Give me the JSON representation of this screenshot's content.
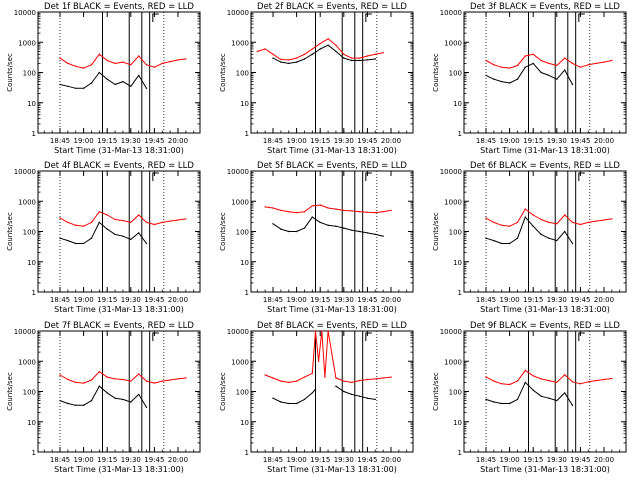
{
  "page": {
    "xlabel": "Start Time (31-Mar-13 18:31:00)",
    "ylabel": "Counts/sec"
  },
  "colors": {
    "events": "#000000",
    "lld": "#ff0000",
    "background": "#ffffff"
  },
  "legend_template": "BLACK = Events, RED = LLD",
  "shared_axes": {
    "x_ticks": [
      "18:45",
      "19:00",
      "19:15",
      "19:30",
      "19:45",
      "20:00"
    ],
    "y_ticks": [
      "1",
      "10",
      "100",
      "1000",
      "10000"
    ],
    "ylim": [
      1,
      10000
    ],
    "yscale": "log"
  },
  "chart_data": [
    {
      "type": "line",
      "title": "Det 1f BLACK = Events, RED = LLD",
      "xlabel": "Start Time (31-Mar-13 18:31:00)",
      "ylabel": "Counts/sec",
      "x": [
        "18:45",
        "18:50",
        "18:55",
        "19:00",
        "19:05",
        "19:10",
        "19:15",
        "19:20",
        "19:25",
        "19:30",
        "19:35",
        "19:40",
        "19:45",
        "19:50",
        "19:55",
        "20:00",
        "20:05"
      ],
      "series": [
        {
          "name": "Events",
          "values": [
            40,
            35,
            30,
            30,
            45,
            100,
            60,
            40,
            50,
            35,
            80,
            30,
            null,
            null,
            null,
            null,
            null
          ]
        },
        {
          "name": "LLD",
          "values": [
            300,
            200,
            160,
            140,
            180,
            400,
            250,
            200,
            220,
            180,
            350,
            180,
            150,
            200,
            230,
            260,
            280
          ]
        }
      ],
      "vlines_dotted": [
        "18:45",
        "19:51"
      ],
      "vlines_solid": [
        "19:12",
        "19:29",
        "19:37",
        "19:42"
      ],
      "yscale": "log",
      "ylim": [
        1,
        10000
      ]
    },
    {
      "type": "line",
      "title": "Det 2f BLACK = Events, RED = LLD",
      "xlabel": "Start Time (31-Mar-13 18:31:00)",
      "ylabel": "Counts/sec",
      "x": [
        "18:35",
        "18:40",
        "18:45",
        "18:50",
        "18:55",
        "19:00",
        "19:05",
        "19:10",
        "19:15",
        "19:20",
        "19:25",
        "19:30",
        "19:35",
        "19:40",
        "19:45",
        "19:50",
        "19:55"
      ],
      "series": [
        {
          "name": "Events",
          "values": [
            null,
            null,
            300,
            220,
            200,
            220,
            280,
            400,
            600,
            800,
            500,
            300,
            250,
            250,
            260,
            280,
            null
          ]
        },
        {
          "name": "LLD",
          "values": [
            500,
            600,
            400,
            270,
            260,
            300,
            400,
            600,
            900,
            1300,
            800,
            400,
            300,
            300,
            350,
            400,
            450
          ]
        }
      ],
      "vlines_dotted": [
        "19:51"
      ],
      "vlines_solid": [
        "19:12",
        "19:29",
        "19:37",
        "19:42"
      ],
      "yscale": "log",
      "ylim": [
        1,
        10000
      ]
    },
    {
      "type": "line",
      "title": "Det 3f BLACK = Events, RED = LLD",
      "xlabel": "Start Time (31-Mar-13 18:31:00)",
      "ylabel": "Counts/sec",
      "x": [
        "18:45",
        "18:50",
        "18:55",
        "19:00",
        "19:05",
        "19:10",
        "19:15",
        "19:20",
        "19:25",
        "19:30",
        "19:35",
        "19:40",
        "19:45",
        "19:50",
        "19:55",
        "20:00",
        "20:05"
      ],
      "series": [
        {
          "name": "Events",
          "values": [
            80,
            60,
            50,
            45,
            60,
            150,
            200,
            100,
            80,
            60,
            120,
            40,
            null,
            null,
            null,
            null,
            null
          ]
        },
        {
          "name": "LLD",
          "values": [
            250,
            180,
            150,
            140,
            170,
            350,
            400,
            250,
            200,
            170,
            300,
            200,
            150,
            180,
            200,
            220,
            250
          ]
        }
      ],
      "vlines_dotted": [
        "18:45",
        "19:51"
      ],
      "vlines_solid": [
        "19:12",
        "19:29",
        "19:37",
        "19:42"
      ],
      "yscale": "log",
      "ylim": [
        1,
        10000
      ]
    },
    {
      "type": "line",
      "title": "Det 4f BLACK = Events, RED = LLD",
      "xlabel": "Start Time (31-Mar-13 18:31:00)",
      "ylabel": "Counts/sec",
      "x": [
        "18:45",
        "18:50",
        "18:55",
        "19:00",
        "19:05",
        "19:10",
        "19:15",
        "19:20",
        "19:25",
        "19:30",
        "19:35",
        "19:40",
        "19:45",
        "19:50",
        "19:55",
        "20:00",
        "20:05"
      ],
      "series": [
        {
          "name": "Events",
          "values": [
            60,
            50,
            40,
            40,
            60,
            200,
            120,
            80,
            70,
            55,
            90,
            40,
            null,
            null,
            null,
            null,
            null
          ]
        },
        {
          "name": "LLD",
          "values": [
            280,
            200,
            160,
            150,
            200,
            450,
            350,
            250,
            230,
            200,
            350,
            200,
            170,
            200,
            220,
            240,
            260
          ]
        }
      ],
      "vlines_dotted": [
        "18:45",
        "19:51"
      ],
      "vlines_solid": [
        "19:12",
        "19:29",
        "19:37",
        "19:42"
      ],
      "yscale": "log",
      "ylim": [
        1,
        10000
      ]
    },
    {
      "type": "line",
      "title": "Det 5f BLACK = Events, RED = LLD",
      "xlabel": "Start Time (31-Mar-13 18:31:00)",
      "ylabel": "Counts/sec",
      "x": [
        "18:40",
        "18:45",
        "18:50",
        "18:55",
        "19:00",
        "19:05",
        "19:10",
        "19:15",
        "19:20",
        "19:25",
        "19:30",
        "19:35",
        "19:40",
        "19:45",
        "19:50",
        "19:55",
        "20:00"
      ],
      "series": [
        {
          "name": "Events",
          "values": [
            null,
            180,
            120,
            100,
            100,
            130,
            300,
            200,
            160,
            150,
            130,
            110,
            100,
            90,
            80,
            70,
            null
          ]
        },
        {
          "name": "LLD",
          "values": [
            650,
            600,
            500,
            450,
            420,
            450,
            700,
            750,
            600,
            550,
            500,
            480,
            450,
            430,
            420,
            450,
            500
          ]
        }
      ],
      "vlines_dotted": [
        "19:51"
      ],
      "vlines_solid": [
        "19:12",
        "19:29",
        "19:37",
        "19:42"
      ],
      "yscale": "log",
      "ylim": [
        1,
        10000
      ]
    },
    {
      "type": "line",
      "title": "Det 6f BLACK = Events, RED = LLD",
      "xlabel": "Start Time (31-Mar-13 18:31:00)",
      "ylabel": "Counts/sec",
      "x": [
        "18:45",
        "18:50",
        "18:55",
        "19:00",
        "19:05",
        "19:10",
        "19:15",
        "19:20",
        "19:25",
        "19:30",
        "19:35",
        "19:40",
        "19:45",
        "19:50",
        "19:55",
        "20:00",
        "20:05"
      ],
      "series": [
        {
          "name": "Events",
          "values": [
            60,
            50,
            40,
            40,
            60,
            300,
            150,
            80,
            60,
            50,
            100,
            40,
            null,
            null,
            null,
            null,
            null
          ]
        },
        {
          "name": "LLD",
          "values": [
            280,
            200,
            160,
            150,
            200,
            550,
            350,
            250,
            200,
            180,
            350,
            200,
            170,
            200,
            220,
            240,
            260
          ]
        }
      ],
      "vlines_dotted": [
        "18:45",
        "19:51"
      ],
      "vlines_solid": [
        "19:12",
        "19:29",
        "19:37",
        "19:42"
      ],
      "yscale": "log",
      "ylim": [
        1,
        10000
      ]
    },
    {
      "type": "line",
      "title": "Det 7f BLACK = Events, RED = LLD",
      "xlabel": "Start Time (31-Mar-13 18:31:00)",
      "ylabel": "Counts/sec",
      "x": [
        "18:45",
        "18:50",
        "18:55",
        "19:00",
        "19:05",
        "19:10",
        "19:15",
        "19:20",
        "19:25",
        "19:30",
        "19:35",
        "19:40",
        "19:45",
        "19:50",
        "19:55",
        "20:00",
        "20:05"
      ],
      "series": [
        {
          "name": "Events",
          "values": [
            50,
            40,
            35,
            35,
            50,
            150,
            90,
            60,
            55,
            45,
            80,
            30,
            null,
            null,
            null,
            null,
            null
          ]
        },
        {
          "name": "LLD",
          "values": [
            350,
            250,
            200,
            190,
            240,
            450,
            300,
            260,
            250,
            220,
            380,
            220,
            190,
            220,
            240,
            260,
            280
          ]
        }
      ],
      "vlines_dotted": [
        "18:45",
        "19:51"
      ],
      "vlines_solid": [
        "19:12",
        "19:29",
        "19:37",
        "19:42"
      ],
      "yscale": "log",
      "ylim": [
        1,
        10000
      ]
    },
    {
      "type": "line",
      "title": "Det 8f BLACK = Events, RED = LLD",
      "xlabel": "Start Time (31-Mar-13 18:31:00)",
      "ylabel": "Counts/sec",
      "x": [
        "18:40",
        "18:45",
        "18:50",
        "18:55",
        "19:00",
        "19:05",
        "19:10",
        "19:12",
        "19:14",
        "19:16",
        "19:18",
        "19:20",
        "19:25",
        "19:30",
        "19:35",
        "19:40",
        "19:45",
        "19:50",
        "19:55",
        "20:00"
      ],
      "series": [
        {
          "name": "Events",
          "values": [
            null,
            60,
            45,
            40,
            40,
            55,
            90,
            120,
            null,
            null,
            null,
            null,
            150,
            100,
            80,
            70,
            60,
            55,
            null,
            null
          ]
        },
        {
          "name": "LLD",
          "values": [
            350,
            280,
            220,
            200,
            220,
            300,
            400,
            10000,
            1000,
            10000,
            300,
            10000,
            280,
            220,
            200,
            230,
            250,
            260,
            280,
            300
          ]
        }
      ],
      "vlines_dotted": [
        "19:51"
      ],
      "vlines_solid": [
        "19:12",
        "19:29",
        "19:37",
        "19:42"
      ],
      "yscale": "log",
      "ylim": [
        1,
        10000
      ]
    },
    {
      "type": "line",
      "title": "Det 9f BLACK = Events, RED = LLD",
      "xlabel": "Start Time (31-Mar-13 18:31:00)",
      "ylabel": "Counts/sec",
      "x": [
        "18:45",
        "18:50",
        "18:55",
        "19:00",
        "19:05",
        "19:10",
        "19:15",
        "19:20",
        "19:25",
        "19:30",
        "19:35",
        "19:40",
        "19:45",
        "19:50",
        "19:55",
        "20:00",
        "20:05"
      ],
      "series": [
        {
          "name": "Events",
          "values": [
            55,
            45,
            40,
            40,
            55,
            200,
            110,
            70,
            60,
            50,
            90,
            35,
            null,
            null,
            null,
            null,
            null
          ]
        },
        {
          "name": "LLD",
          "values": [
            300,
            220,
            180,
            170,
            220,
            500,
            330,
            260,
            230,
            200,
            360,
            210,
            180,
            210,
            230,
            250,
            270
          ]
        }
      ],
      "vlines_dotted": [
        "18:45",
        "19:51"
      ],
      "vlines_solid": [
        "19:12",
        "19:29",
        "19:37",
        "19:42"
      ],
      "yscale": "log",
      "ylim": [
        1,
        10000
      ]
    }
  ]
}
